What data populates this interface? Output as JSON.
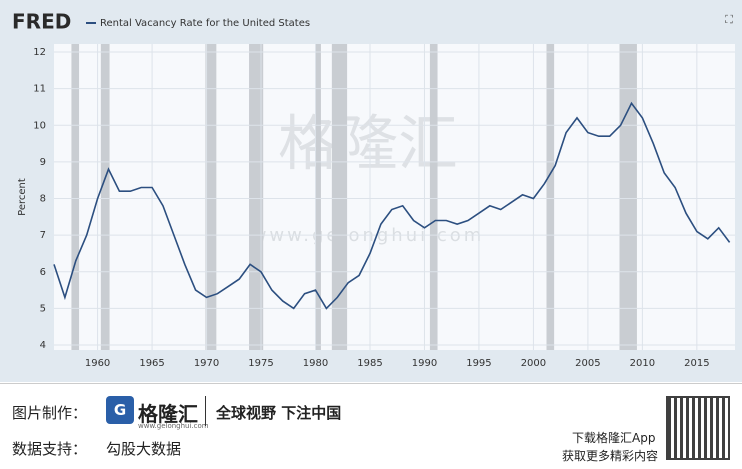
{
  "chart_data": {
    "type": "line",
    "brand": "FRED",
    "legend_position": "top-left",
    "ylabel": "Percent",
    "series": [
      {
        "name": "Rental Vacancy Rate for the United States",
        "color": "#2c4f80",
        "x": [
          1956,
          1957,
          1958,
          1959,
          1960,
          1961,
          1962,
          1963,
          1964,
          1965,
          1966,
          1967,
          1968,
          1969,
          1970,
          1971,
          1972,
          1973,
          1974,
          1975,
          1976,
          1977,
          1978,
          1979,
          1980,
          1981,
          1982,
          1983,
          1984,
          1985,
          1986,
          1987,
          1988,
          1989,
          1990,
          1991,
          1992,
          1993,
          1994,
          1995,
          1996,
          1997,
          1998,
          1999,
          2000,
          2001,
          2002,
          2003,
          2004,
          2005,
          2006,
          2007,
          2008,
          2009,
          2010,
          2011,
          2012,
          2013,
          2014,
          2015,
          2016,
          2017,
          2018
        ],
        "values": [
          6.2,
          5.3,
          6.3,
          7.0,
          8.0,
          8.8,
          8.2,
          8.2,
          8.3,
          8.3,
          7.8,
          7.0,
          6.2,
          5.5,
          5.3,
          5.4,
          5.6,
          5.8,
          6.2,
          6.0,
          5.5,
          5.2,
          5.0,
          5.4,
          5.5,
          5.0,
          5.3,
          5.7,
          5.9,
          6.5,
          7.3,
          7.7,
          7.8,
          7.4,
          7.2,
          7.4,
          7.4,
          7.3,
          7.4,
          7.6,
          7.8,
          7.7,
          7.9,
          8.1,
          8.0,
          8.4,
          8.9,
          9.8,
          10.2,
          9.8,
          9.7,
          9.7,
          10.0,
          10.6,
          10.2,
          9.5,
          8.7,
          8.3,
          7.6,
          7.1,
          6.9,
          7.2,
          6.8
        ]
      }
    ],
    "recessions": [
      [
        1957.6,
        1958.3
      ],
      [
        1960.3,
        1961.1
      ],
      [
        1969.9,
        1970.9
      ],
      [
        1973.9,
        1975.2
      ],
      [
        1980.0,
        1980.5
      ],
      [
        1981.5,
        1982.9
      ],
      [
        1990.5,
        1991.2
      ],
      [
        2001.2,
        2001.9
      ],
      [
        2007.9,
        2009.5
      ]
    ],
    "recession_color": "#c9cdd2",
    "xlim": [
      1956,
      2018.5
    ],
    "ylim": [
      4,
      12
    ],
    "xticks": [
      1960,
      1965,
      1970,
      1975,
      1980,
      1985,
      1990,
      1995,
      2000,
      2005,
      2010,
      2015
    ],
    "yticks": [
      4,
      5,
      6,
      7,
      8,
      9,
      10,
      11,
      12
    ],
    "grid": true
  },
  "watermark": {
    "logo": "格隆汇",
    "url": "www.gelonghui.com"
  },
  "footer": {
    "made_label": "图片制作：",
    "brand": "格隆汇",
    "brand_url": "www.gelonghui.com",
    "slogan": "全球视野 下注中国",
    "data_label": "数据支持：",
    "data_source": "勾股大数据",
    "app_line1": "下载格隆汇App",
    "app_line2": "获取更多精彩内容"
  }
}
